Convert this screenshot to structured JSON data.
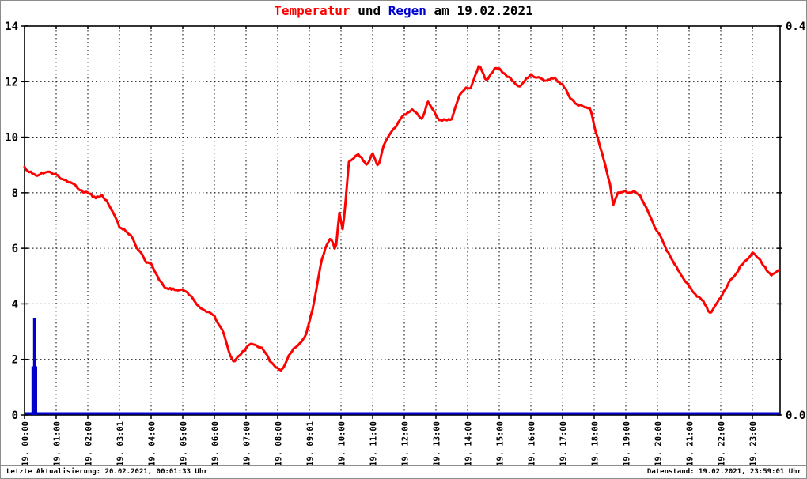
{
  "chart_data": {
    "type": "line",
    "title_full": "Temperatur und Regen am 19.02.2021",
    "title_parts": [
      {
        "text": "Temperatur",
        "color": "#ff0000"
      },
      {
        "text": " und ",
        "color": "#000000"
      },
      {
        "text": "Regen",
        "color": "#0000cd"
      },
      {
        "text": " am 19.02.2021",
        "color": "#000000"
      }
    ],
    "grid": "dotted",
    "legend": "none",
    "x_axis": {
      "unit": "time of day",
      "hours_start": 0,
      "hours_end": 23.875,
      "tick_labels": [
        "19. 00:00",
        "19. 01:00",
        "19. 02:00",
        "19. 03:01",
        "19. 04:00",
        "19. 05:00",
        "19. 06:00",
        "19. 07:00",
        "19. 08:00",
        "19. 09:01",
        "19. 10:00",
        "19. 11:00",
        "19. 12:00",
        "19. 13:00",
        "19. 14:00",
        "19. 15:00",
        "19. 16:00",
        "19. 17:00",
        "19. 18:00",
        "19. 19:00",
        "19. 20:00",
        "19. 21:00",
        "19. 22:00",
        "19. 23:00"
      ]
    },
    "y_left": {
      "min": 0,
      "max": 14,
      "tick_step": 2,
      "tick_labels": [
        "0",
        "2",
        "4",
        "6",
        "8",
        "10",
        "12",
        "14"
      ]
    },
    "y_right": {
      "min": 0,
      "max": 0.4,
      "top_label": "0.4",
      "bottom_label": "0.0"
    },
    "series": {
      "temperature": {
        "name": "Temperatur",
        "color": "#ff0000",
        "axis": "left",
        "points": [
          [
            0,
            8.9
          ],
          [
            0.2,
            8.75
          ],
          [
            0.37,
            8.58
          ],
          [
            0.55,
            8.72
          ],
          [
            0.75,
            8.76
          ],
          [
            1,
            8.68
          ],
          [
            1.15,
            8.5
          ],
          [
            1.3,
            8.45
          ],
          [
            1.5,
            8.35
          ],
          [
            1.75,
            8.1
          ],
          [
            2,
            8.0
          ],
          [
            2.2,
            7.85
          ],
          [
            2.45,
            7.88
          ],
          [
            2.6,
            7.7
          ],
          [
            2.75,
            7.4
          ],
          [
            3,
            6.78
          ],
          [
            3.15,
            6.7
          ],
          [
            3.35,
            6.45
          ],
          [
            3.6,
            5.95
          ],
          [
            3.85,
            5.5
          ],
          [
            4,
            5.45
          ],
          [
            4.25,
            4.85
          ],
          [
            4.5,
            4.55
          ],
          [
            4.75,
            4.5
          ],
          [
            5,
            4.5
          ],
          [
            5.25,
            4.3
          ],
          [
            5.5,
            3.9
          ],
          [
            5.75,
            3.72
          ],
          [
            6,
            3.55
          ],
          [
            6.25,
            3.05
          ],
          [
            6.5,
            2.15
          ],
          [
            6.62,
            1.88
          ],
          [
            6.87,
            2.25
          ],
          [
            7.1,
            2.55
          ],
          [
            7.3,
            2.5
          ],
          [
            7.5,
            2.4
          ],
          [
            7.75,
            1.95
          ],
          [
            8,
            1.68
          ],
          [
            8.13,
            1.58
          ],
          [
            8.37,
            2.2
          ],
          [
            8.62,
            2.5
          ],
          [
            8.87,
            2.8
          ],
          [
            9,
            3.35
          ],
          [
            9.13,
            3.95
          ],
          [
            9.25,
            4.7
          ],
          [
            9.38,
            5.5
          ],
          [
            9.5,
            6.0
          ],
          [
            9.67,
            6.4
          ],
          [
            9.83,
            5.9
          ],
          [
            9.95,
            7.3
          ],
          [
            10.05,
            6.7
          ],
          [
            10.12,
            7.35
          ],
          [
            10.25,
            9.1
          ],
          [
            10.54,
            9.4
          ],
          [
            10.8,
            9.0
          ],
          [
            11,
            9.4
          ],
          [
            11.17,
            8.9
          ],
          [
            11.33,
            9.65
          ],
          [
            11.55,
            10.1
          ],
          [
            11.75,
            10.45
          ],
          [
            12,
            10.8
          ],
          [
            12.25,
            11.0
          ],
          [
            12.54,
            10.65
          ],
          [
            12.75,
            11.25
          ],
          [
            13.13,
            10.6
          ],
          [
            13.5,
            10.65
          ],
          [
            13.75,
            11.5
          ],
          [
            13.95,
            11.8
          ],
          [
            14.1,
            11.75
          ],
          [
            14.37,
            12.65
          ],
          [
            14.58,
            12.0
          ],
          [
            14.87,
            12.5
          ],
          [
            15,
            12.45
          ],
          [
            15.3,
            12.15
          ],
          [
            15.63,
            11.8
          ],
          [
            16,
            12.25
          ],
          [
            16.42,
            12.05
          ],
          [
            16.75,
            12.1
          ],
          [
            17,
            11.9
          ],
          [
            17.25,
            11.4
          ],
          [
            17.5,
            11.15
          ],
          [
            17.87,
            11.05
          ],
          [
            18,
            10.4
          ],
          [
            18.25,
            9.4
          ],
          [
            18.5,
            8.3
          ],
          [
            18.6,
            7.6
          ],
          [
            18.75,
            8.0
          ],
          [
            19,
            8.05
          ],
          [
            19.3,
            8.0
          ],
          [
            19.45,
            7.9
          ],
          [
            20,
            6.6
          ],
          [
            20.5,
            5.5
          ],
          [
            21,
            4.6
          ],
          [
            21.5,
            4.0
          ],
          [
            21.67,
            3.65
          ],
          [
            22,
            4.25
          ],
          [
            22.3,
            4.85
          ],
          [
            22.67,
            5.4
          ],
          [
            23,
            5.85
          ],
          [
            23.3,
            5.5
          ],
          [
            23.58,
            5.0
          ],
          [
            23.87,
            5.25
          ]
        ]
      },
      "rain": {
        "name": "Regen",
        "color": "#0000cd",
        "axis": "right",
        "baseline_value": 0,
        "bars": [
          {
            "from_h": 0.22,
            "to_h": 0.4,
            "value": 0.05
          },
          {
            "from_h": 0.27,
            "to_h": 0.35,
            "value": 0.1
          }
        ]
      }
    }
  },
  "footer": {
    "left": "Letzte Aktualisierung: 20.02.2021, 00:01:33 Uhr",
    "right": "Datenstand: 19.02.2021, 23:59:01 Uhr"
  }
}
